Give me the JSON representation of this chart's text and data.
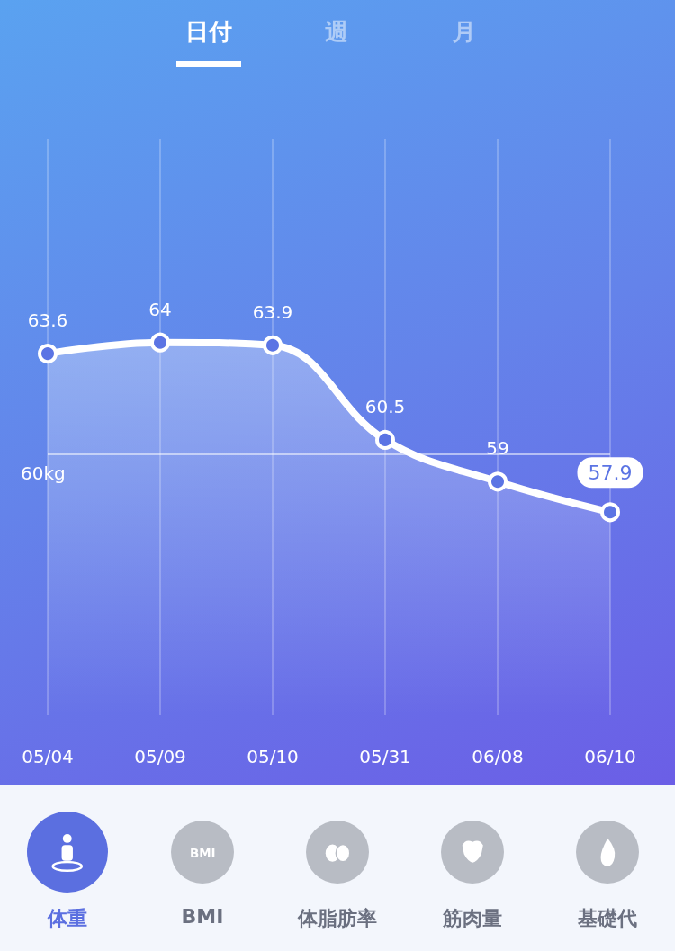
{
  "chart_data": {
    "type": "area",
    "categories": [
      "05/04",
      "05/09",
      "05/10",
      "05/31",
      "06/08",
      "06/10"
    ],
    "series": [
      {
        "color": "#ffffff",
        "values": [
          63.6,
          64,
          63.9,
          60.5,
          59,
          57.9
        ]
      }
    ],
    "ylim": [
      50.6,
      71.3
    ],
    "tick_labels": "x",
    "grid": "x",
    "marker": "circle",
    "data_labels": true,
    "ref_lines": [
      {
        "axis": "y",
        "value": 60,
        "label": "60kg"
      }
    ],
    "annotations": [
      "日付",
      "週",
      "月",
      "体重",
      "BMI",
      "体脂肪率",
      "筋肉量",
      "基礎代"
    ]
  }
}
